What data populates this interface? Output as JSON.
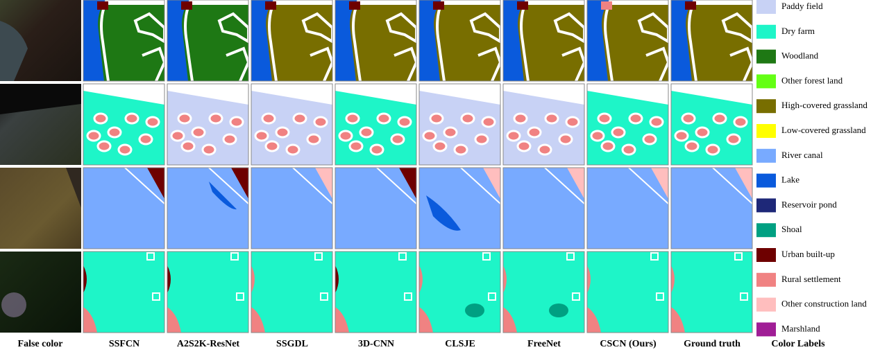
{
  "captions": [
    "False color",
    "SSFCN",
    "A2S2K-ResNet",
    "SSGDL",
    "3D-CNN",
    "CLSJE",
    "FreeNet",
    "CSCN (Ours)",
    "Ground truth",
    "Color Labels"
  ],
  "legend": [
    {
      "label": "Paddy field",
      "color": "#c8d2f5"
    },
    {
      "label": "Dry farm",
      "color": "#1ef5c8"
    },
    {
      "label": "Woodland",
      "color": "#1e7814"
    },
    {
      "label": "Other forest land",
      "color": "#64ff14"
    },
    {
      "label": "High-covered grassland",
      "color": "#786e00"
    },
    {
      "label": "Low-covered grassland",
      "color": "#ffff00"
    },
    {
      "label": "River canal",
      "color": "#78aaff"
    },
    {
      "label": "Lake",
      "color": "#0a5adc"
    },
    {
      "label": "Reservoir pond",
      "color": "#1e2878"
    },
    {
      "label": "Shoal",
      "color": "#00a082"
    },
    {
      "label": "Urban built-up",
      "color": "#6e0000"
    },
    {
      "label": "Rural settlement",
      "color": "#f08282"
    },
    {
      "label": "Other construction land",
      "color": "#ffbebe"
    },
    {
      "label": "Marshland",
      "color": "#a01e96"
    }
  ]
}
